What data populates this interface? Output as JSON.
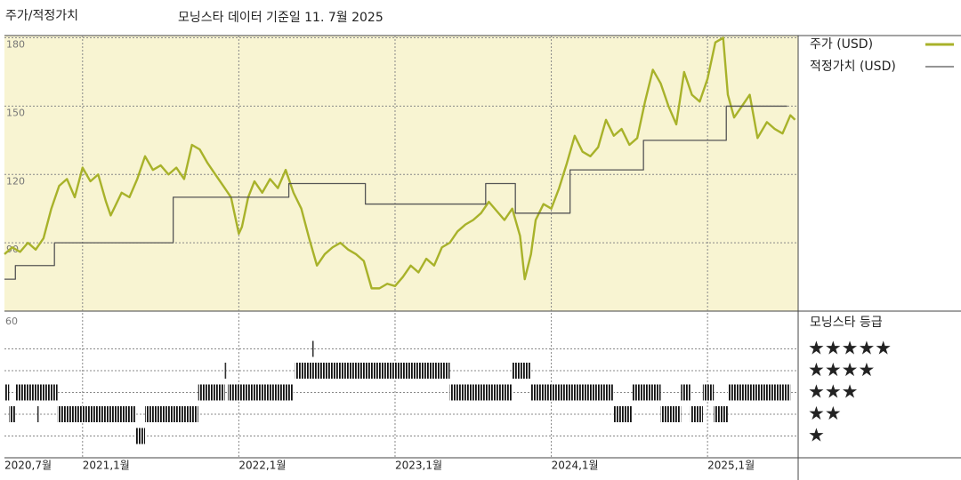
{
  "chart_data": {
    "type": "line",
    "title": "주가/적정가치",
    "subtitle": "모닝스타 데이터 기준일 11. 7월 2025",
    "xlim": [
      2020.5,
      2025.58
    ],
    "xticks": [
      {
        "value": 2020.5,
        "label": "2020,7월"
      },
      {
        "value": 2021.0,
        "label": "2021,1월"
      },
      {
        "value": 2022.0,
        "label": "2022,1월"
      },
      {
        "value": 2023.0,
        "label": "2023,1월"
      },
      {
        "value": 2024.0,
        "label": "2024,1월"
      },
      {
        "value": 2025.0,
        "label": "2025,1월"
      }
    ],
    "ylim": [
      60,
      181
    ],
    "yticks": [
      90,
      120,
      150,
      180
    ],
    "grid": true,
    "series": [
      {
        "name": "주가 (USD)",
        "color": "#a8b22a",
        "drawstyle": "linear",
        "x": [
          2020.5,
          2020.55,
          2020.6,
          2020.65,
          2020.7,
          2020.75,
          2020.8,
          2020.85,
          2020.9,
          2020.95,
          2021.0,
          2021.05,
          2021.1,
          2021.15,
          2021.18,
          2021.25,
          2021.3,
          2021.35,
          2021.4,
          2021.45,
          2021.5,
          2021.55,
          2021.6,
          2021.65,
          2021.7,
          2021.75,
          2021.8,
          2021.85,
          2021.9,
          2021.95,
          2022.0,
          2022.02,
          2022.06,
          2022.1,
          2022.15,
          2022.2,
          2022.25,
          2022.3,
          2022.35,
          2022.4,
          2022.45,
          2022.5,
          2022.55,
          2022.6,
          2022.65,
          2022.7,
          2022.75,
          2022.8,
          2022.85,
          2022.9,
          2022.95,
          2023.0,
          2023.05,
          2023.1,
          2023.15,
          2023.2,
          2023.25,
          2023.3,
          2023.35,
          2023.4,
          2023.45,
          2023.5,
          2023.55,
          2023.6,
          2023.65,
          2023.7,
          2023.75,
          2023.8,
          2023.83,
          2023.87,
          2023.9,
          2023.95,
          2024.0,
          2024.05,
          2024.1,
          2024.15,
          2024.2,
          2024.25,
          2024.3,
          2024.35,
          2024.4,
          2024.45,
          2024.5,
          2024.55,
          2024.6,
          2024.65,
          2024.7,
          2024.75,
          2024.8,
          2024.85,
          2024.9,
          2024.95,
          2025.0,
          2025.05,
          2025.1,
          2025.13,
          2025.17,
          2025.22,
          2025.27,
          2025.32,
          2025.38,
          2025.43,
          2025.48,
          2025.53,
          2025.56
        ],
        "values": [
          85,
          88,
          86,
          90,
          87,
          92,
          105,
          115,
          118,
          110,
          123,
          117,
          120,
          108,
          102,
          112,
          110,
          118,
          128,
          122,
          124,
          120,
          123,
          118,
          133,
          131,
          125,
          120,
          115,
          110,
          94,
          97,
          110,
          117,
          112,
          118,
          114,
          122,
          112,
          105,
          92,
          80,
          85,
          88,
          90,
          87,
          85,
          82,
          70,
          70,
          72,
          71,
          75,
          80,
          77,
          83,
          80,
          88,
          90,
          95,
          98,
          100,
          103,
          108,
          104,
          100,
          105,
          93,
          74,
          85,
          100,
          107,
          105,
          114,
          125,
          137,
          130,
          128,
          132,
          144,
          137,
          140,
          133,
          136,
          152,
          166,
          160,
          150,
          142,
          165,
          155,
          152,
          162,
          178,
          180,
          155,
          145,
          150,
          155,
          136,
          143,
          140,
          138,
          146,
          144
        ]
      },
      {
        "name": "적정가치 (USD)",
        "color": "#555555",
        "drawstyle": "steps-post",
        "x": [
          2020.5,
          2020.57,
          2020.82,
          2021.58,
          2022.32,
          2022.81,
          2023.58,
          2023.77,
          2024.12,
          2024.59,
          2025.12,
          2025.51
        ],
        "values": [
          74,
          80,
          90,
          110,
          116,
          107,
          116,
          103,
          122,
          135,
          150,
          150
        ]
      }
    ],
    "rating_title": "모닝스타 등급",
    "rating_panel_label": "60",
    "rating_labels": [
      "★",
      "★★",
      "★★★",
      "★★★★",
      "★★★★★"
    ],
    "ratings": {
      "start": [
        2020.5,
        2020.53,
        2020.57,
        2020.71,
        2020.84,
        2021.34,
        2021.4,
        2021.74,
        2021.91,
        2021.93,
        2022.36,
        2022.47,
        2023.35,
        2023.75,
        2023.87,
        2024.4,
        2024.52,
        2024.7,
        2024.83,
        2024.89,
        2024.97,
        2025.04,
        2025.13
      ],
      "end": [
        2020.53,
        2020.57,
        2020.84,
        2020.71,
        2021.34,
        2021.4,
        2021.74,
        2021.91,
        2021.91,
        2022.35,
        2023.35,
        2022.47,
        2023.75,
        2023.87,
        2024.4,
        2024.52,
        2024.7,
        2024.83,
        2024.89,
        2024.97,
        2025.04,
        2025.13,
        2025.53
      ],
      "stars": [
        3,
        2,
        3,
        2,
        2,
        1,
        2,
        3,
        4,
        3,
        4,
        5,
        3,
        4,
        3,
        2,
        3,
        2,
        3,
        2,
        3,
        2,
        3
      ]
    }
  }
}
